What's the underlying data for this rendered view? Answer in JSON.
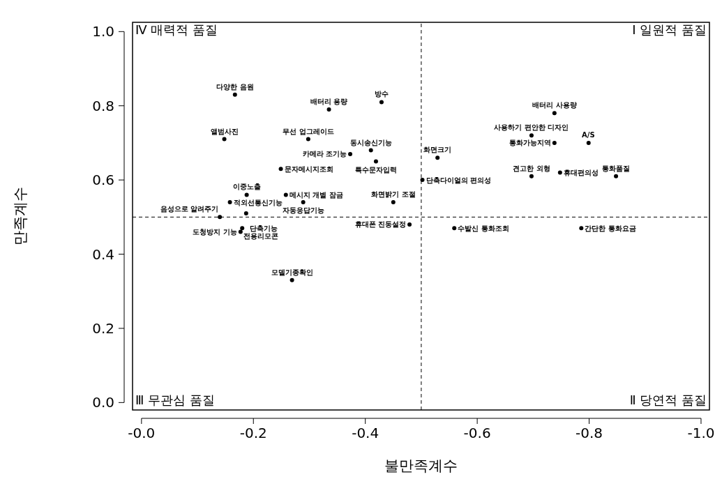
{
  "chart_data": {
    "type": "scatter",
    "xlabel": "불만족계수",
    "ylabel": "만족계수",
    "xlim": [
      0.016,
      -1.015
    ],
    "ylim": [
      -0.02,
      1.025
    ],
    "xticks": [
      {
        "value": 0,
        "label": "-0.0"
      },
      -0.2,
      -0.4,
      -0.6,
      -0.8,
      {
        "value": -1,
        "label": "-1.0"
      }
    ],
    "yticks": [
      {
        "value": 0,
        "label": "0.0"
      },
      0.2,
      0.4,
      0.6,
      0.8,
      {
        "value": 1,
        "label": "1.0"
      }
    ],
    "grid": false,
    "marker": "circle",
    "series": [
      {
        "color": "#000000",
        "x": [
          -0.167,
          -0.335,
          -0.429,
          -0.148,
          -0.298,
          -0.373,
          -0.41,
          -0.249,
          -0.188,
          -0.158,
          -0.258,
          -0.289,
          -0.14,
          -0.187,
          -0.18,
          -0.177,
          -0.269,
          -0.419,
          -0.529,
          -0.502,
          -0.45,
          -0.479,
          -0.559,
          -0.738,
          -0.697,
          -0.738,
          -0.799,
          -0.697,
          -0.748,
          -0.848,
          -0.786
        ],
        "values": [
          0.83,
          0.79,
          0.81,
          0.71,
          0.71,
          0.67,
          0.68,
          0.63,
          0.56,
          0.54,
          0.56,
          0.54,
          0.5,
          0.51,
          0.47,
          0.46,
          0.33,
          0.65,
          0.66,
          0.6,
          0.54,
          0.48,
          0.47,
          0.78,
          0.72,
          0.7,
          0.7,
          0.61,
          0.62,
          0.61,
          0.47
        ]
      }
    ],
    "ref_lines": [
      {
        "axis": "x",
        "value": -0.5,
        "line_style": "dashed"
      },
      {
        "axis": "y",
        "value": 0.5,
        "line_style": "dashed"
      }
    ],
    "annotations": [
      "Ⅳ 매력적 품질",
      "Ⅰ 일원적 품질",
      "Ⅲ 무관심 품질",
      "Ⅱ 당연적 품질",
      {
        "text": "다양한 음원",
        "x": -0.167,
        "y": 0.83
      },
      {
        "text": "배터리 용량",
        "x": -0.335,
        "y": 0.79
      },
      {
        "text": "방수",
        "x": -0.429,
        "y": 0.81
      },
      {
        "text": "앨범사진",
        "x": -0.148,
        "y": 0.71
      },
      {
        "text": "무선 업그레이드",
        "x": -0.298,
        "y": 0.71
      },
      {
        "text": "카메라 조기능",
        "x": -0.373,
        "y": 0.67
      },
      {
        "text": "동시송신기능",
        "x": -0.41,
        "y": 0.68
      },
      {
        "text": "문자메시지조회",
        "x": -0.249,
        "y": 0.63
      },
      {
        "text": "이중노출",
        "x": -0.188,
        "y": 0.56
      },
      {
        "text": "적외선통신기능",
        "x": -0.158,
        "y": 0.54
      },
      {
        "text": "메시지 개별 잠금",
        "x": -0.258,
        "y": 0.56
      },
      {
        "text": "자동응답기능",
        "x": -0.289,
        "y": 0.54
      },
      {
        "text": "음성으로 알려주기",
        "x": -0.14,
        "y": 0.5
      },
      {
        "text": "단축기능",
        "x": -0.187,
        "y": 0.51
      },
      {
        "text": "전용리모콘",
        "x": -0.18,
        "y": 0.47
      },
      {
        "text": "도청방지 기능",
        "x": -0.177,
        "y": 0.46
      },
      {
        "text": "모델기종확인",
        "x": -0.269,
        "y": 0.33
      },
      {
        "text": "특수문자입력",
        "x": -0.419,
        "y": 0.65
      },
      {
        "text": "화면크기",
        "x": -0.529,
        "y": 0.66
      },
      {
        "text": "단축다이얼의 편의성",
        "x": -0.502,
        "y": 0.6
      },
      {
        "text": "화면밝기 조절",
        "x": -0.45,
        "y": 0.54
      },
      {
        "text": "휴대폰 진동설정",
        "x": -0.479,
        "y": 0.48
      },
      {
        "text": "수발신 통화조회",
        "x": -0.559,
        "y": 0.47
      },
      {
        "text": "배터리 사용량",
        "x": -0.738,
        "y": 0.78
      },
      {
        "text": "사용하기 편안한 디자인",
        "x": -0.697,
        "y": 0.72
      },
      {
        "text": "통화가능지역",
        "x": -0.738,
        "y": 0.7
      },
      {
        "text": "A/S",
        "x": -0.799,
        "y": 0.7
      },
      {
        "text": "견고한 외형",
        "x": -0.697,
        "y": 0.61
      },
      {
        "text": "휴대편의성",
        "x": -0.748,
        "y": 0.62
      },
      {
        "text": "통화품질",
        "x": -0.848,
        "y": 0.61
      },
      {
        "text": "간단한 통화요금",
        "x": -0.786,
        "y": 0.47
      }
    ]
  }
}
